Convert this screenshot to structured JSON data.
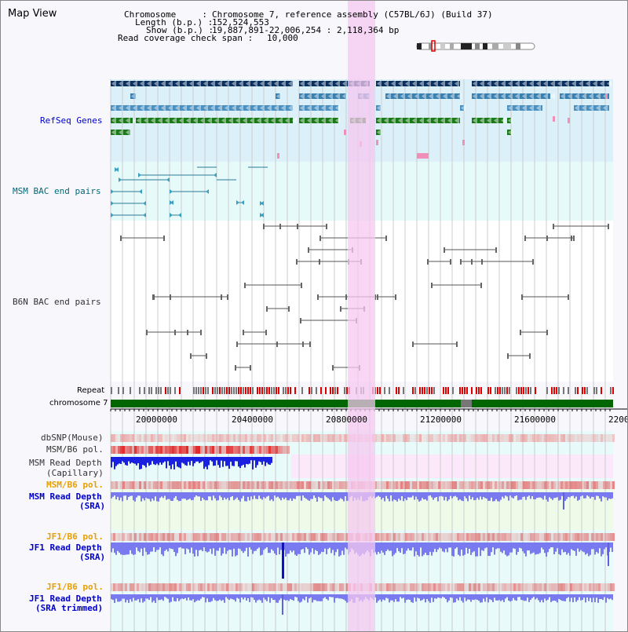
{
  "title": "Map View",
  "header": {
    "chromosome_label": "Chromosome     :",
    "chromosome_value": "Chromosome 7, reference assembly (C57BL/6J) (Build 37)",
    "length_label": "Length (b.p.) :",
    "length_value": "152,524,553",
    "show_label": "Show (b.p.) :",
    "show_value": "19,887,891-22,006,254 : 2,118,364 bp",
    "coverage_label": "Read coverage check span :",
    "coverage_value": "10,000"
  },
  "tracks": {
    "refseq": "RefSeq Genes",
    "msm_bac": "MSM BAC end pairs",
    "b6n_bac": "B6N BAC end pairs",
    "repeat": "Repeat",
    "chromosome": "chromosome 7",
    "dbsnp": "dbSNP(Mouse)",
    "msm_b6_pol_1": "MSM/B6 pol.",
    "msm_read_depth_cap_1": "MSM Read Depth",
    "msm_read_depth_cap_2": "(Capillary)",
    "msm_b6_pol_2": "MSM/B6 pol.",
    "msm_read_depth_sra_1": "MSM Read Depth",
    "msm_read_depth_sra_2": "(SRA)",
    "jf1_b6_pol_1": "JF1/B6 pol.",
    "jf1_read_depth_sra_1": "JF1 Read Depth",
    "jf1_read_depth_sra_2": "(SRA)",
    "jf1_b6_pol_2": "JF1/B6 pol.",
    "jf1_read_depth_trim_1": "JF1 Read Depth",
    "jf1_read_depth_trim_2": "(SRA trimmed)"
  },
  "axis": {
    "ticks": [
      "20000000",
      "20400000",
      "20800000",
      "21200000",
      "21600000",
      "2200"
    ]
  },
  "colors": {
    "label_blue": "#0000cc",
    "label_teal": "#006a7a",
    "label_orange": "#e8a000",
    "highlight": "#f5c8f0",
    "chromosome_green": "#006600",
    "refseq_bg": "#dcf0fa",
    "bac_bg": "#e6fafa"
  }
}
